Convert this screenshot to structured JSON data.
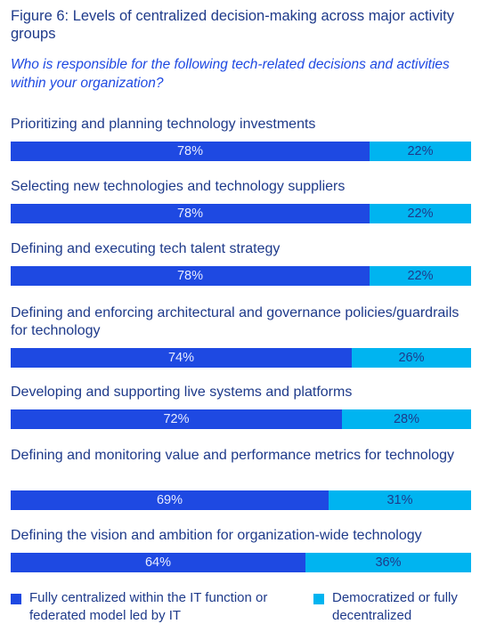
{
  "figure": {
    "title": "Figure 6: Levels of centralized decision-making across major activity groups",
    "subtitle": "Who is responsible for the following tech-related decisions and activities within your organization?"
  },
  "chart_data": {
    "type": "bar",
    "orientation": "horizontal",
    "stacked": true,
    "categories": [
      "Prioritizing and planning technology investments",
      "Selecting new technologies and technology suppliers",
      "Defining and executing tech talent strategy",
      "Defining and enforcing architectural and governance policies/guardrails for technology",
      "Developing and supporting live systems and platforms",
      "Defining and monitoring value and performance metrics for technology",
      "Defining the vision and ambition for organization-wide technology"
    ],
    "series": [
      {
        "name": "Fully centralized within the IT function or federated model led by IT",
        "values": [
          78,
          78,
          78,
          74,
          72,
          69,
          64
        ],
        "color": "#1e49e2"
      },
      {
        "name": "Democratized or fully decentralized",
        "values": [
          22,
          22,
          22,
          26,
          28,
          31,
          36
        ],
        "color": "#00b4f0"
      }
    ],
    "value_suffix": "%",
    "xlim": [
      0,
      100
    ],
    "grid": false,
    "legend_position": "bottom"
  }
}
